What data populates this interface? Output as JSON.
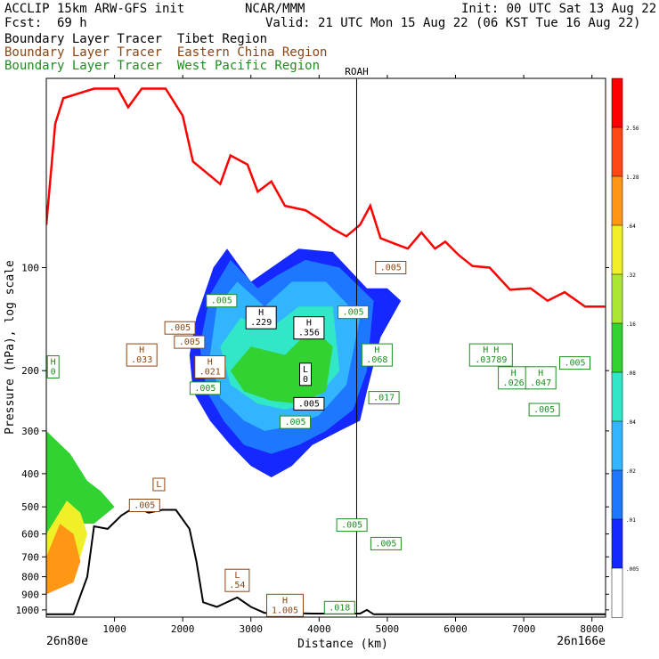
{
  "header": {
    "line1_left": "ACCLIP 15km ARW-GFS init",
    "line1_center": "NCAR/MMM",
    "line1_right": "Init: 00 UTC Sat 13 Aug 22",
    "fcst_label": "Fcst:",
    "fcst_value": "69 h",
    "valid": "Valid: 21 UTC Mon 15 Aug 22 (06 KST Tue 16 Aug 22)",
    "tracer1": "Boundary Layer Tracer  Tibet Region",
    "tracer2": "Boundary Layer Tracer  Eastern China Region",
    "tracer3": "Boundary Layer Tracer  West Pacific Region"
  },
  "colors": {
    "tibet": "#000000",
    "eastern_china": "#8b4513",
    "west_pacific": "#1e8c1e",
    "tropopause": "#ff0000",
    "terrain": "#000000"
  },
  "chart_data": {
    "type": "cross-section",
    "xlabel": "Distance (km)",
    "ylabel": "Pressure (hPa), log scale",
    "x_range": [
      0,
      8200
    ],
    "y_range": [
      1050,
      28
    ],
    "y_scale": "log",
    "x_ticks": [
      1000,
      2000,
      3000,
      4000,
      5000,
      6000,
      7000,
      8000
    ],
    "y_ticks": [
      100,
      200,
      300,
      400,
      500,
      600,
      700,
      800,
      900,
      1000
    ],
    "x_start_label": "26n80e",
    "x_end_label": "26n166e",
    "marker": {
      "label": "ROAH",
      "x": 4550
    },
    "colorbar": {
      "levels": [
        ".005",
        ".01",
        ".02",
        ".04",
        ".08",
        ".16",
        ".32",
        ".64",
        "1.28",
        "2.56"
      ],
      "colors": [
        "#ffffff",
        "#1428ff",
        "#1e78ff",
        "#32b4ff",
        "#32e6c8",
        "#32d232",
        "#aae632",
        "#f0f028",
        "#ff9614",
        "#ff4614",
        "#ff0000"
      ]
    },
    "tropopause": [
      [
        0,
        75
      ],
      [
        130,
        38
      ],
      [
        250,
        32
      ],
      [
        700,
        30
      ],
      [
        1050,
        30
      ],
      [
        1200,
        34
      ],
      [
        1400,
        30
      ],
      [
        1750,
        30
      ],
      [
        2000,
        36
      ],
      [
        2150,
        49
      ],
      [
        2550,
        57
      ],
      [
        2700,
        47
      ],
      [
        2950,
        50
      ],
      [
        3100,
        60
      ],
      [
        3300,
        56
      ],
      [
        3500,
        66
      ],
      [
        3800,
        68
      ],
      [
        4000,
        72
      ],
      [
        4200,
        77
      ],
      [
        4400,
        81
      ],
      [
        4600,
        75
      ],
      [
        4750,
        66
      ],
      [
        4900,
        82
      ],
      [
        5100,
        85
      ],
      [
        5300,
        88
      ],
      [
        5500,
        79
      ],
      [
        5700,
        88
      ],
      [
        5850,
        84
      ],
      [
        6050,
        92
      ],
      [
        6250,
        99
      ],
      [
        6500,
        100
      ],
      [
        6800,
        116
      ],
      [
        7100,
        115
      ],
      [
        7350,
        125
      ],
      [
        7600,
        118
      ],
      [
        7900,
        130
      ],
      [
        8200,
        130
      ]
    ],
    "terrain": [
      [
        0,
        1030
      ],
      [
        400,
        1030
      ],
      [
        600,
        800
      ],
      [
        700,
        570
      ],
      [
        900,
        580
      ],
      [
        1100,
        530
      ],
      [
        1300,
        500
      ],
      [
        1500,
        520
      ],
      [
        1700,
        510
      ],
      [
        1900,
        510
      ],
      [
        2100,
        580
      ],
      [
        2200,
        720
      ],
      [
        2300,
        950
      ],
      [
        2500,
        980
      ],
      [
        2800,
        920
      ],
      [
        3000,
        980
      ],
      [
        3200,
        1020
      ],
      [
        3500,
        1020
      ],
      [
        3900,
        1025
      ],
      [
        4600,
        1025
      ],
      [
        4700,
        1000
      ],
      [
        4800,
        1030
      ],
      [
        8200,
        1030
      ]
    ],
    "shading": [
      {
        "level": ".01",
        "color": "#1428ff",
        "points": [
          [
            2650,
            88
          ],
          [
            3000,
            110
          ],
          [
            3300,
            100
          ],
          [
            3700,
            88
          ],
          [
            4200,
            90
          ],
          [
            4700,
            115
          ],
          [
            5000,
            115
          ],
          [
            5200,
            125
          ],
          [
            4900,
            160
          ],
          [
            4700,
            230
          ],
          [
            4600,
            280
          ],
          [
            4300,
            300
          ],
          [
            3900,
            330
          ],
          [
            3600,
            380
          ],
          [
            3300,
            410
          ],
          [
            3000,
            380
          ],
          [
            2700,
            330
          ],
          [
            2400,
            280
          ],
          [
            2150,
            230
          ],
          [
            2100,
            180
          ],
          [
            2200,
            140
          ],
          [
            2450,
            100
          ]
        ]
      },
      {
        "level": ".02",
        "color": "#1e78ff",
        "points": [
          [
            2700,
            95
          ],
          [
            3100,
            115
          ],
          [
            3400,
            105
          ],
          [
            3800,
            95
          ],
          [
            4300,
            100
          ],
          [
            4800,
            125
          ],
          [
            4700,
            200
          ],
          [
            4500,
            260
          ],
          [
            4100,
            300
          ],
          [
            3700,
            330
          ],
          [
            3300,
            350
          ],
          [
            2900,
            330
          ],
          [
            2600,
            280
          ],
          [
            2350,
            230
          ],
          [
            2250,
            170
          ],
          [
            2400,
            120
          ]
        ]
      },
      {
        "level": ".04",
        "color": "#32b4ff",
        "points": [
          [
            2800,
            110
          ],
          [
            3200,
            130
          ],
          [
            3600,
            110
          ],
          [
            4100,
            110
          ],
          [
            4600,
            140
          ],
          [
            4400,
            220
          ],
          [
            4000,
            270
          ],
          [
            3600,
            290
          ],
          [
            3200,
            300
          ],
          [
            2900,
            280
          ],
          [
            2550,
            240
          ],
          [
            2400,
            180
          ],
          [
            2500,
            130
          ]
        ]
      },
      {
        "level": ".08",
        "color": "#32e6c8",
        "points": [
          [
            2850,
            140
          ],
          [
            3300,
            150
          ],
          [
            3700,
            130
          ],
          [
            4200,
            130
          ],
          [
            4300,
            200
          ],
          [
            3900,
            250
          ],
          [
            3500,
            260
          ],
          [
            3100,
            250
          ],
          [
            2700,
            220
          ],
          [
            2550,
            170
          ]
        ]
      },
      {
        "level": ".16",
        "color": "#32d232",
        "points": [
          [
            3000,
            170
          ],
          [
            3500,
            180
          ],
          [
            3900,
            150
          ],
          [
            4200,
            170
          ],
          [
            4100,
            230
          ],
          [
            3700,
            250
          ],
          [
            3300,
            245
          ],
          [
            2900,
            230
          ],
          [
            2700,
            200
          ]
        ]
      },
      {
        "level": ".32 (Tibet BL)",
        "color": "#32d232",
        "points": [
          [
            0,
            300
          ],
          [
            350,
            350
          ],
          [
            600,
            420
          ],
          [
            800,
            450
          ],
          [
            1000,
            500
          ],
          [
            700,
            560
          ],
          [
            500,
            560
          ],
          [
            400,
            600
          ],
          [
            200,
            700
          ],
          [
            0,
            760
          ]
        ]
      },
      {
        "level": ".64",
        "color": "#f0f028",
        "points": [
          [
            0,
            600
          ],
          [
            300,
            480
          ],
          [
            500,
            520
          ],
          [
            600,
            600
          ],
          [
            500,
            700
          ],
          [
            300,
            700
          ],
          [
            0,
            800
          ]
        ]
      },
      {
        "level": "1.28",
        "color": "#ff9614",
        "points": [
          [
            0,
            700
          ],
          [
            200,
            560
          ],
          [
            400,
            600
          ],
          [
            500,
            720
          ],
          [
            400,
            830
          ],
          [
            0,
            900
          ]
        ]
      }
    ],
    "tracer_labels": [
      {
        "text": "H\n.229",
        "tracer": "tibet",
        "x": 3150,
        "y": 140
      },
      {
        "text": "H\n.356",
        "tracer": "tibet",
        "x": 3850,
        "y": 150
      },
      {
        "text": ".005",
        "tracer": "west_pacific",
        "x": 4500,
        "y": 135
      },
      {
        "text": ".005",
        "tracer": "eastern_china",
        "x": 5050,
        "y": 100
      },
      {
        "text": ".005",
        "tracer": "west_pacific",
        "x": 2570,
        "y": 125
      },
      {
        "text": ".005",
        "tracer": "eastern_china",
        "x": 1960,
        "y": 150
      },
      {
        "text": ".005",
        "tracer": "eastern_china",
        "x": 2100,
        "y": 165
      },
      {
        "text": "H\n.033",
        "tracer": "eastern_china",
        "x": 1400,
        "y": 180
      },
      {
        "text": "H\n.021",
        "tracer": "eastern_china",
        "x": 2400,
        "y": 195
      },
      {
        "text": "H\n0",
        "tracer": "west_pacific",
        "x": 100,
        "y": 195
      },
      {
        "text": ".005",
        "tracer": "west_pacific",
        "x": 2330,
        "y": 225
      },
      {
        "text": "L\n0",
        "tracer": "tibet",
        "x": 3800,
        "y": 205
      },
      {
        "text": ".005",
        "tracer": "tibet",
        "x": 3850,
        "y": 250
      },
      {
        "text": ".005",
        "tracer": "west_pacific",
        "x": 3650,
        "y": 283
      },
      {
        "text": "H\n.068",
        "tracer": "west_pacific",
        "x": 4850,
        "y": 180
      },
      {
        "text": ".017",
        "tracer": "west_pacific",
        "x": 4950,
        "y": 240
      },
      {
        "text": "H H\n.03789",
        "tracer": "west_pacific",
        "x": 6520,
        "y": 180
      },
      {
        "text": "H\n.026",
        "tracer": "west_pacific",
        "x": 6850,
        "y": 210
      },
      {
        "text": "H\n.047",
        "tracer": "west_pacific",
        "x": 7250,
        "y": 210
      },
      {
        "text": ".005",
        "tracer": "west_pacific",
        "x": 7750,
        "y": 190
      },
      {
        "text": ".005",
        "tracer": "west_pacific",
        "x": 7300,
        "y": 260
      },
      {
        "text": "L",
        "tracer": "eastern_china",
        "x": 1650,
        "y": 430
      },
      {
        "text": ".005",
        "tracer": "eastern_china",
        "x": 1440,
        "y": 495
      },
      {
        "text": ".005",
        "tracer": "west_pacific",
        "x": 4480,
        "y": 565
      },
      {
        "text": ".005",
        "tracer": "west_pacific",
        "x": 4980,
        "y": 640
      },
      {
        "text": "L\n.54",
        "tracer": "eastern_china",
        "x": 2800,
        "y": 820
      },
      {
        "text": "H\n1.005",
        "tracer": "eastern_china",
        "x": 3500,
        "y": 970
      },
      {
        "text": ".018",
        "tracer": "west_pacific",
        "x": 4300,
        "y": 985
      }
    ]
  }
}
